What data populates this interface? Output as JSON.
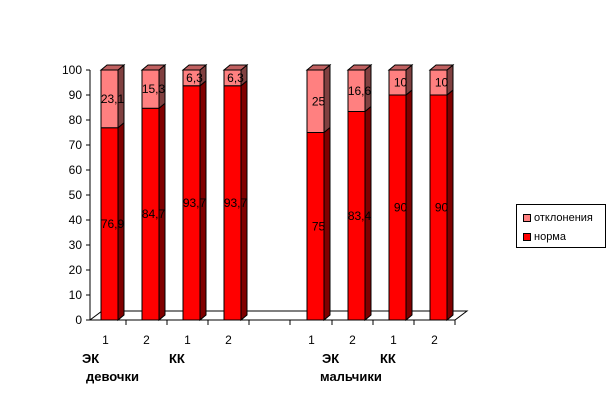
{
  "chart_data": {
    "type": "bar",
    "stacked": true,
    "three_d": true,
    "categories": [
      "1",
      "2",
      "1",
      "2",
      "1",
      "2",
      "1",
      "2"
    ],
    "series": [
      {
        "name": "норма",
        "values": [
          76.9,
          84.7,
          93.7,
          93.7,
          75,
          83.4,
          90,
          90
        ],
        "labels": [
          "76,9",
          "84,7",
          "93,7",
          "93,7",
          "75",
          "83,4",
          "90",
          "90"
        ]
      },
      {
        "name": "отклонения",
        "values": [
          23.1,
          15.3,
          6.3,
          6.3,
          25,
          16.6,
          10,
          10
        ],
        "labels": [
          "23,1",
          "15,3",
          "6,3",
          "6,3",
          "25",
          "16,6",
          "10",
          "10"
        ]
      }
    ],
    "ylim": [
      0,
      100
    ],
    "yticks": [
      "0",
      "10",
      "20",
      "30",
      "40",
      "50",
      "60",
      "70",
      "80",
      "90",
      "100"
    ],
    "grid": false,
    "legend_position": "right",
    "group_labels": {
      "ek_1": "ЭК",
      "kk_1": "КК",
      "devochki": "девочки",
      "ek_2": "ЭК",
      "kk_2": "КК",
      "malchiki": "мальчики"
    },
    "colors": {
      "норма": "#ff0000",
      "норма_side": "#800000",
      "норма_top": "#c00000",
      "отклонения": "#ff8080",
      "отклонения_side": "#804040",
      "отклонения_top": "#c06060"
    }
  },
  "legend": {
    "items": [
      {
        "label": "отклонения",
        "color": "#ff8080"
      },
      {
        "label": "норма",
        "color": "#ff0000"
      }
    ]
  }
}
